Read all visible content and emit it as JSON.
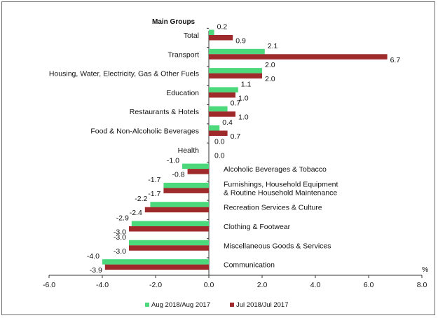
{
  "chart_data": {
    "type": "bar",
    "orientation": "horizontal",
    "title": "Main Groups",
    "unit_label": "%",
    "xlim": [
      -6.0,
      8.0
    ],
    "x_ticks": [
      "-6.0",
      "-4.0",
      "-2.0",
      "0.0",
      "2.0",
      "4.0",
      "6.0",
      "8.0"
    ],
    "categories": [
      "Total",
      "Transport",
      "Housing, Water, Electricity, Gas & Other Fuels",
      "Education",
      "Restaurants & Hotels",
      "Food & Non-Alcoholic Beverages",
      "Health",
      "Alcoholic Beverages & Tobacco",
      "Furnishings, Household Equipment & Routine Household Maintenance",
      "Recreation Services & Culture",
      "Clothing & Footwear",
      "Miscellaneous Goods & Services",
      "Communication"
    ],
    "category_lines": [
      [
        "Total"
      ],
      [
        "Transport"
      ],
      [
        "Housing, Water, Electricity, Gas & Other Fuels"
      ],
      [
        "Education"
      ],
      [
        "Restaurants & Hotels"
      ],
      [
        "Food & Non-Alcoholic Beverages"
      ],
      [
        "Health"
      ],
      [
        "Alcoholic Beverages & Tobacco"
      ],
      [
        "Furnishings, Household Equipment",
        "& Routine Household Maintenance"
      ],
      [
        "Recreation Services & Culture"
      ],
      [
        "Clothing & Footwear"
      ],
      [
        "Miscellaneous Goods & Services"
      ],
      [
        "Communication"
      ]
    ],
    "series": [
      {
        "name": "Aug 2018/Aug 2017",
        "color": "#4cd97b",
        "values": [
          0.2,
          2.1,
          2.0,
          1.1,
          0.7,
          0.4,
          0.0,
          -1.0,
          -1.7,
          -2.2,
          -2.9,
          -3.0,
          -4.0
        ],
        "labels": [
          "0.2",
          "2.1",
          "2.0",
          "1.1",
          "0.7",
          "0.4",
          "0.0",
          "-1.0",
          "-1.7",
          "-2.2",
          "-2.9",
          "-3.0",
          "-4.0"
        ]
      },
      {
        "name": "Jul 2018/Jul 2017",
        "color": "#9e2a2b",
        "values": [
          0.9,
          6.7,
          2.0,
          1.0,
          1.0,
          0.7,
          0.0,
          -0.8,
          -1.7,
          -2.4,
          -3.0,
          -3.0,
          -3.9
        ],
        "labels": [
          "0.9",
          "6.7",
          "2.0",
          "1.0",
          "1.0",
          "0.7",
          "0.0",
          "-0.8",
          "-1.7",
          "-2.4",
          "-3.0",
          "-3.0",
          "-3.9"
        ]
      }
    ],
    "legend_position": "bottom"
  }
}
